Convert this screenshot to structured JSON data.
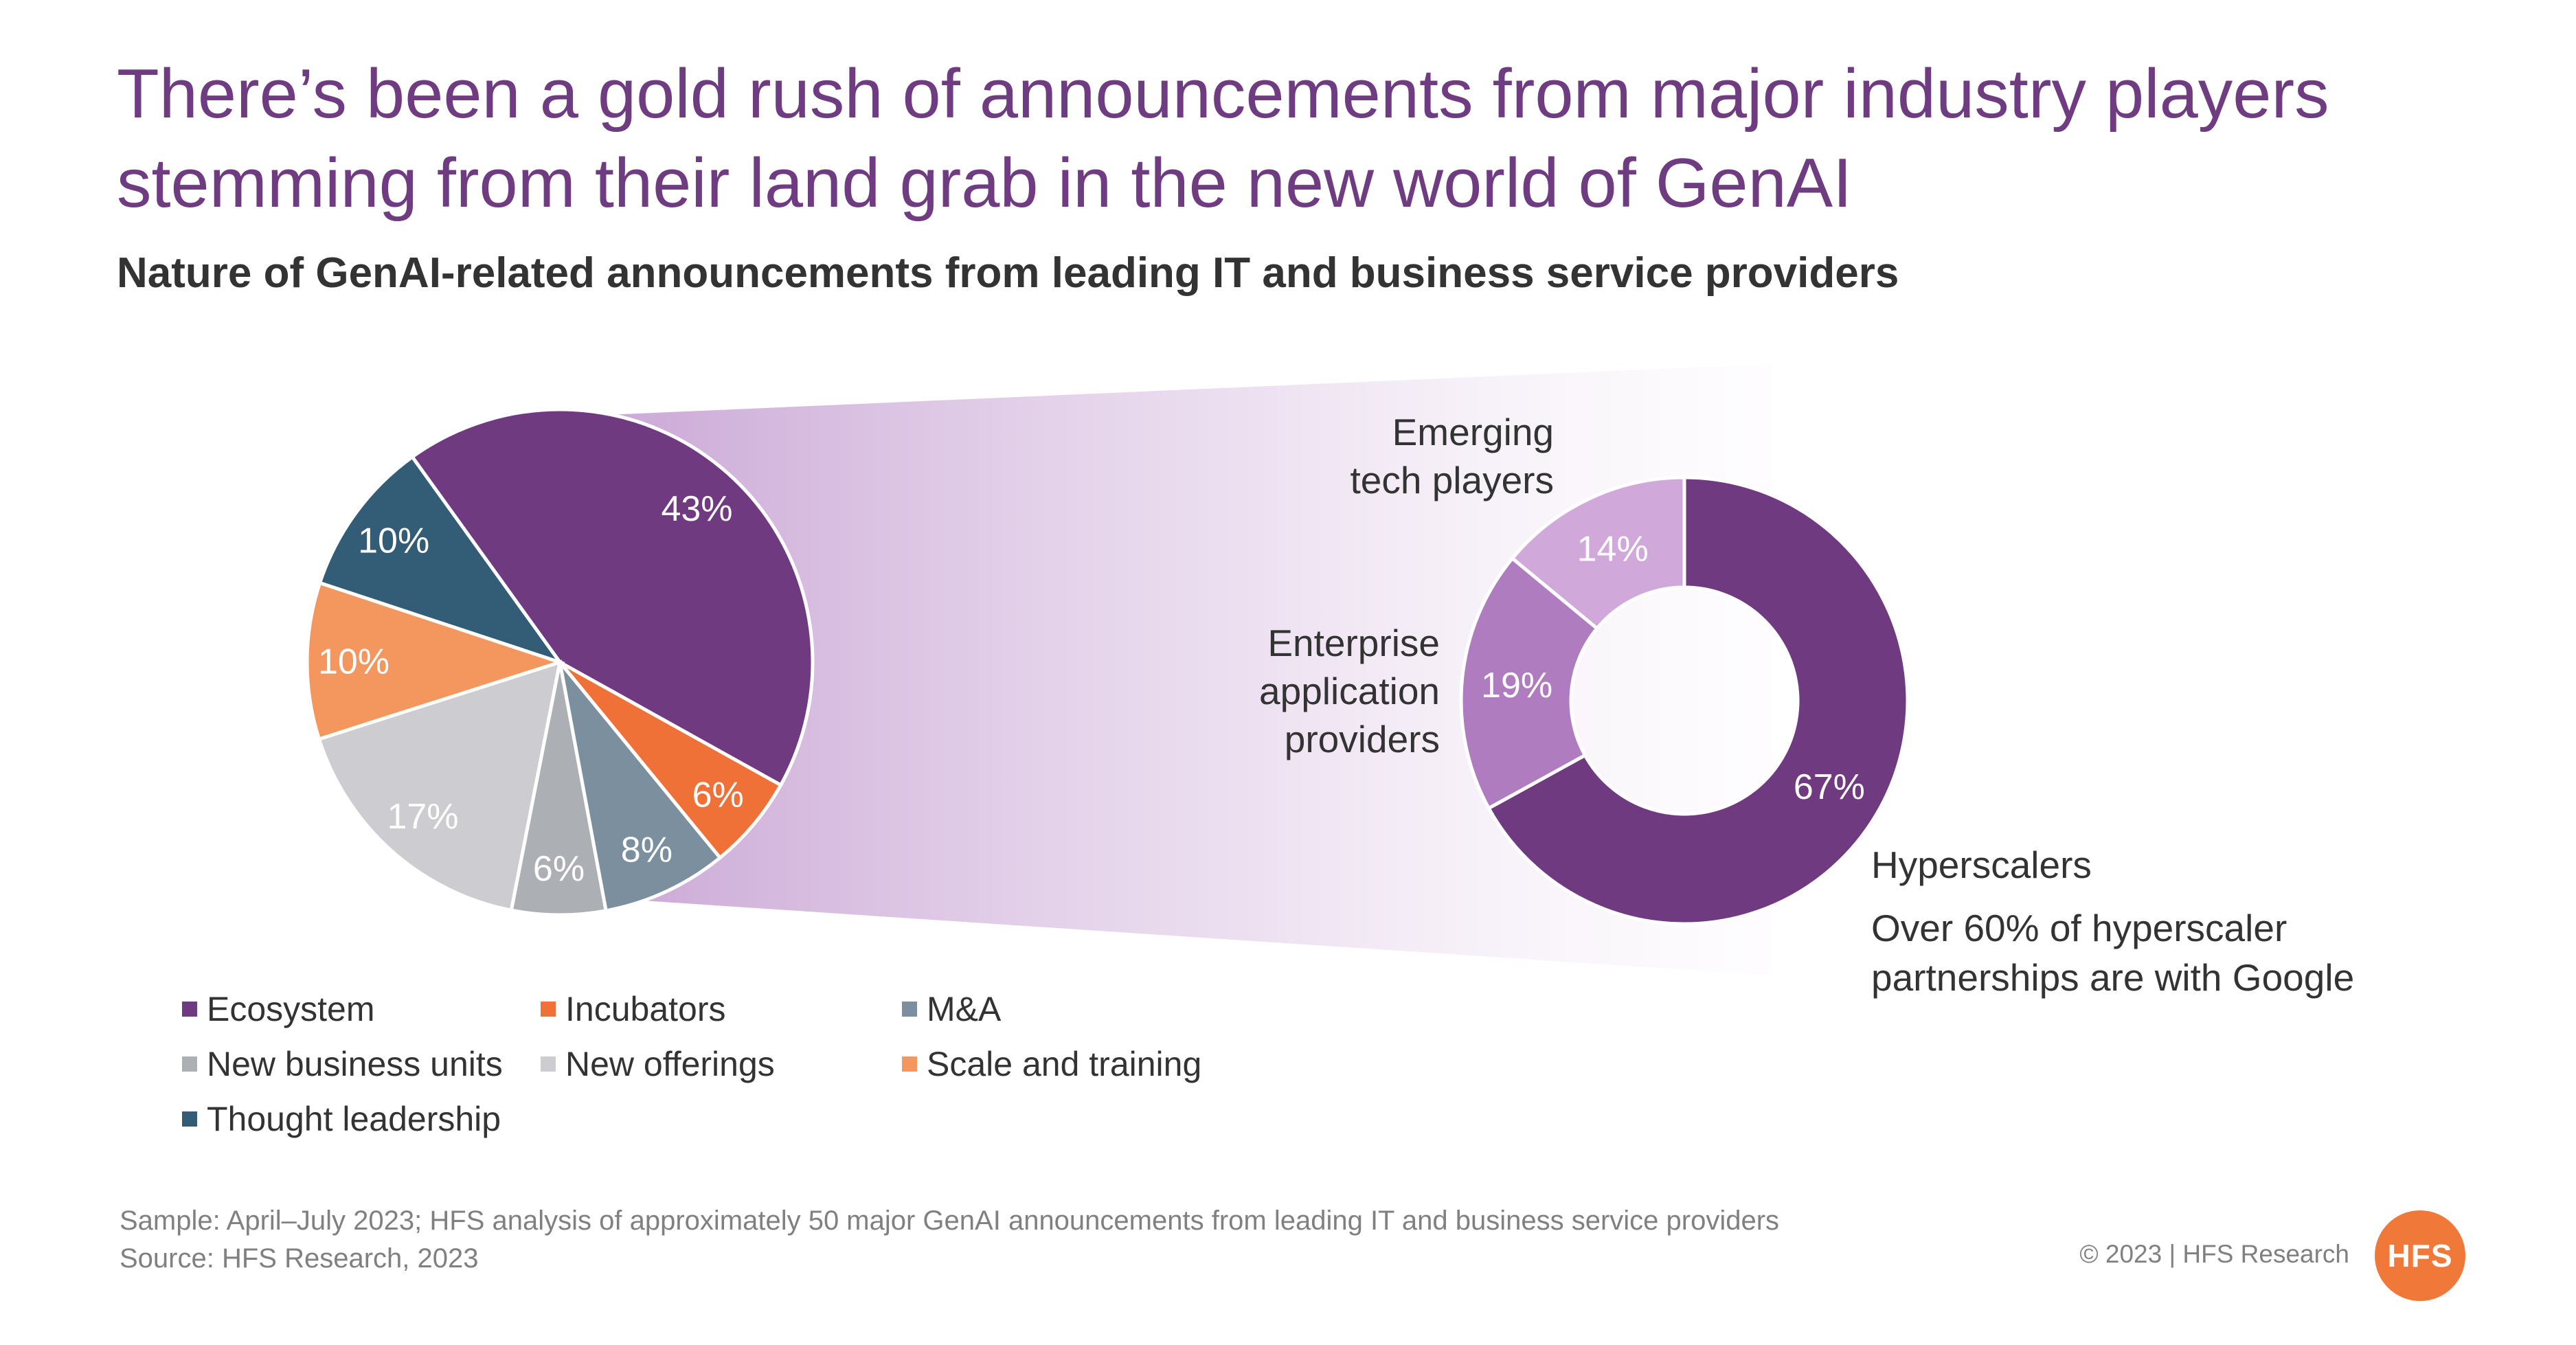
{
  "title": "There’s been a gold rush of announcements from major industry players stemming from their land grab in the new world of GenAI",
  "subtitle": "Nature of GenAI-related announcements from leading IT and business service providers",
  "chart_data": [
    {
      "type": "pie",
      "categories": [
        "Ecosystem",
        "Incubators",
        "M&A",
        "New business units",
        "New offerings",
        "Scale and training",
        "Thought leadership"
      ],
      "values": [
        43,
        6,
        8,
        6,
        17,
        10,
        10
      ],
      "labels": [
        "43%",
        "6%",
        "8%",
        "6%",
        "17%",
        "10%",
        "10%"
      ],
      "colors": [
        "#6f3a80",
        "#ef7138",
        "#7b8f9e",
        "#acb0b5",
        "#cdcdd1",
        "#f4975f",
        "#335c76"
      ],
      "legend": "bottom"
    },
    {
      "type": "pie",
      "variant": "donut",
      "categories": [
        "Hyperscalers",
        "Enterprise application providers",
        "Emerging tech players"
      ],
      "values": [
        67,
        19,
        14
      ],
      "labels": [
        "67%",
        "19%",
        "14%"
      ],
      "category_labels": [
        [
          "Hyperscalers"
        ],
        [
          "Enterprise",
          "application",
          "providers"
        ],
        [
          "Emerging",
          "tech players"
        ]
      ],
      "colors": [
        "#6f3a80",
        "#b07cc0",
        "#d0a9da"
      ]
    }
  ],
  "legend_items": [
    {
      "label": "Ecosystem",
      "color": "#6f3a80"
    },
    {
      "label": "Incubators",
      "color": "#ef7138"
    },
    {
      "label": "M&A",
      "color": "#7b8f9e"
    },
    {
      "label": "New business units",
      "color": "#acb0b5"
    },
    {
      "label": "New offerings",
      "color": "#cdcdd1"
    },
    {
      "label": "Scale and training",
      "color": "#f4975f"
    },
    {
      "label": "Thought leadership",
      "color": "#335c76"
    }
  ],
  "annotation_lines": [
    "Over 60% of hyperscaler",
    "partnerships are with Google"
  ],
  "footnotes": [
    "Sample: April–July 2023; HFS analysis of approximately 50 major GenAI announcements from leading IT and business service providers",
    "Source: HFS Research, 2023"
  ],
  "copyright": "© 2023 | HFS Research",
  "logo_text": "HFS"
}
